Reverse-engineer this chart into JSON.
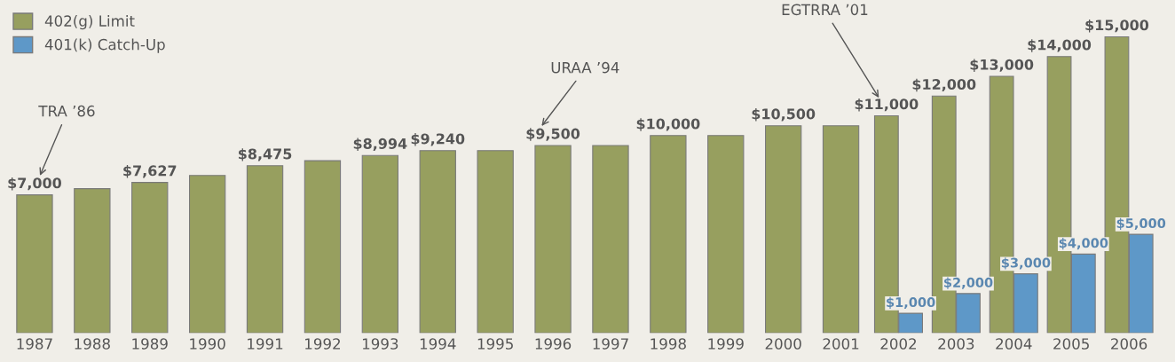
{
  "chart_data": {
    "type": "bar",
    "categories": [
      "1987",
      "1988",
      "1989",
      "1990",
      "1991",
      "1992",
      "1993",
      "1994",
      "1995",
      "1996",
      "1997",
      "1998",
      "1999",
      "2000",
      "2001",
      "2002",
      "2003",
      "2004",
      "2005",
      "2006"
    ],
    "series": [
      {
        "name": "402(g) Limit",
        "color": "#979f5f",
        "values": [
          7000,
          7313,
          7627,
          7979,
          8475,
          8728,
          8994,
          9240,
          9240,
          9500,
          9500,
          10000,
          10000,
          10500,
          10500,
          11000,
          12000,
          13000,
          14000,
          15000
        ],
        "value_labels": [
          "$7,000",
          null,
          "$7,627",
          null,
          "$8,475",
          null,
          "$8,994",
          "$9,240",
          null,
          "$9,500",
          null,
          "$10,000",
          null,
          "$10,500",
          null,
          "$11,000",
          "$12,000",
          "$13,000",
          "$14,000",
          "$15,000"
        ]
      },
      {
        "name": "401(k) Catch-Up",
        "color": "#5e98c8",
        "values": [
          null,
          null,
          null,
          null,
          null,
          null,
          null,
          null,
          null,
          null,
          null,
          null,
          null,
          null,
          null,
          1000,
          2000,
          3000,
          4000,
          5000
        ],
        "value_labels": [
          null,
          null,
          null,
          null,
          null,
          null,
          null,
          null,
          null,
          null,
          null,
          null,
          null,
          null,
          null,
          "$1,000",
          "$2,000",
          "$3,000",
          "$4,000",
          "$5,000"
        ]
      }
    ],
    "annotations": [
      "TRA ’86",
      "URAA ’94",
      "EGTRRA ’01"
    ],
    "legend": "top left",
    "grid": false
  }
}
